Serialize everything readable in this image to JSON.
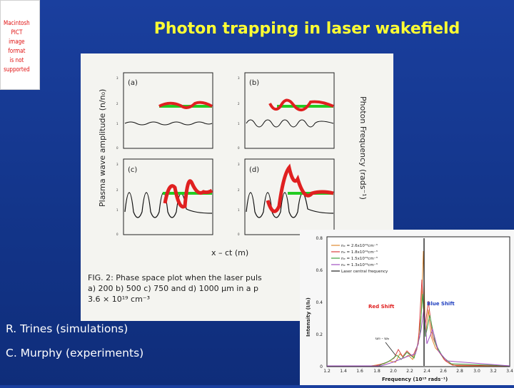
{
  "slide": {
    "title": "Photon trapping in laser wakefield",
    "placeholder_text": [
      "Macintosh PICT",
      "image format",
      "is not supported"
    ],
    "credits": [
      "R. Trines (simulations)",
      "C. Murphy (experiments)"
    ]
  },
  "figure1": {
    "ylabel": "Plasma wave amplitude (n/n₀)",
    "y2label": "Photon Frequency (rads⁻¹)",
    "xlabel": "x – ct (m)",
    "panels": [
      "(a)",
      "(b)",
      "(c)",
      "(d)"
    ],
    "caption_lines": [
      "FIG. 2: Phase space plot when the laser puls",
      "a) 200 b) 500 c) 750 and d) 1000 μm in a p",
      "3.6 × 10¹⁹ cm⁻³"
    ],
    "colors": {
      "wake": "#111111",
      "photons": "#e02020",
      "laser": "#22cc22"
    }
  },
  "figure2": {
    "ylabel": "Intensity (I/I₀)",
    "xlabel": "Frequency (10¹⁵ rads⁻¹)",
    "red_shift_label": "Red Shift",
    "blue_shift_label": "Blue Shift",
    "arrow_label": "ω₀ - ωₚ",
    "y_ticks": [
      "0.8",
      "0.6",
      "0.4",
      "0.2",
      "0"
    ],
    "x_ticks": [
      "1.2",
      "1.4",
      "1.6",
      "1.8",
      "2.0",
      "2.2",
      "2.4",
      "2.6",
      "2.8",
      "3.0",
      "3.2",
      "3.4"
    ],
    "legend": [
      {
        "label": "nₑ = 2.6x10¹⁹cm⁻³",
        "color": "#e08a30"
      },
      {
        "label": "nₑ = 1.8x10¹⁹cm⁻³",
        "color": "#d84040"
      },
      {
        "label": "nₑ = 1.5x10¹⁹cm⁻³",
        "color": "#40a040"
      },
      {
        "label": "nₑ = 1.3x10¹⁹cm⁻³",
        "color": "#a050c0"
      },
      {
        "label": "Laser central frequency",
        "color": "#222222"
      }
    ]
  }
}
